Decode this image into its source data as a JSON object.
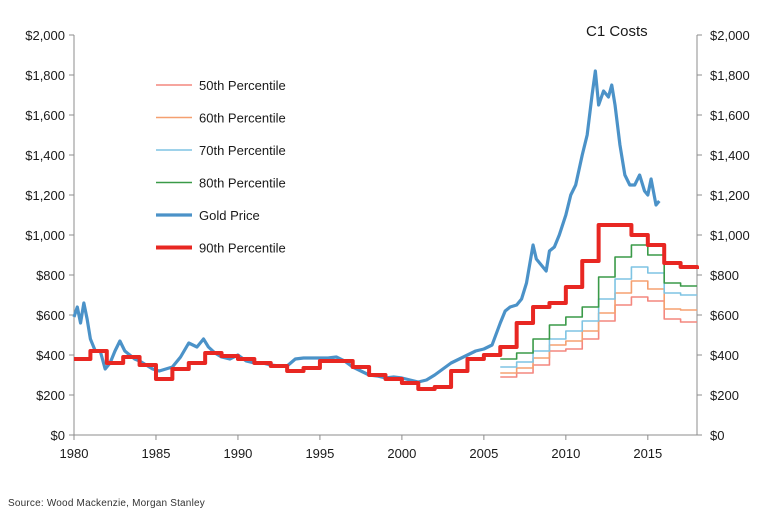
{
  "chart_data": {
    "type": "line",
    "title": "C1 Costs",
    "xlabel": "",
    "ylabel": "",
    "xlim": [
      1980,
      2018
    ],
    "ylim": [
      0,
      2000
    ],
    "x_ticks": [
      1980,
      1985,
      1990,
      1995,
      2000,
      2005,
      2010,
      2015
    ],
    "y_ticks": [
      0,
      200,
      400,
      600,
      800,
      1000,
      1200,
      1400,
      1600,
      1800,
      2000
    ],
    "y_tick_labels": [
      "$0",
      "$200",
      "$400",
      "$600",
      "$800",
      "$1,000",
      "$1,200",
      "$1,400",
      "$1,600",
      "$1,800",
      "$2,000"
    ],
    "x_tick_labels": [
      "1980",
      "1985",
      "1990",
      "1995",
      "2000",
      "2005",
      "2010",
      "2015"
    ],
    "grid": false,
    "legend_position": "top-left",
    "series": [
      {
        "name": "50th Percentile",
        "color": "#f4877f",
        "step": true,
        "x": [
          2006,
          2007,
          2008,
          2009,
          2010,
          2011,
          2012,
          2013,
          2014,
          2015,
          2016,
          2017,
          2018
        ],
        "values": [
          290,
          310,
          350,
          420,
          430,
          480,
          570,
          650,
          690,
          670,
          580,
          565,
          565
        ]
      },
      {
        "name": "60th Percentile",
        "color": "#f5a070",
        "step": true,
        "x": [
          2006,
          2007,
          2008,
          2009,
          2010,
          2011,
          2012,
          2013,
          2014,
          2015,
          2016,
          2017,
          2018
        ],
        "values": [
          310,
          335,
          385,
          450,
          470,
          520,
          610,
          710,
          770,
          730,
          630,
          625,
          625
        ]
      },
      {
        "name": "70th Percentile",
        "color": "#7ec4e3",
        "step": true,
        "x": [
          2006,
          2007,
          2008,
          2009,
          2010,
          2011,
          2012,
          2013,
          2014,
          2015,
          2016,
          2017,
          2018
        ],
        "values": [
          340,
          365,
          420,
          480,
          520,
          570,
          680,
          780,
          840,
          810,
          710,
          700,
          700
        ]
      },
      {
        "name": "80th Percentile",
        "color": "#3a9a48",
        "step": true,
        "x": [
          2006,
          2007,
          2008,
          2009,
          2010,
          2011,
          2012,
          2013,
          2014,
          2015,
          2016,
          2017,
          2018
        ],
        "values": [
          380,
          410,
          480,
          550,
          590,
          640,
          790,
          890,
          950,
          900,
          760,
          745,
          745
        ]
      },
      {
        "name": "Gold Price",
        "color": "#4b92c8",
        "step": false,
        "x": [
          1980.0,
          1980.2,
          1980.4,
          1980.6,
          1980.8,
          1981.0,
          1981.3,
          1981.6,
          1981.9,
          1982.2,
          1982.5,
          1982.8,
          1983.1,
          1983.4,
          1983.7,
          1984.0,
          1984.4,
          1984.8,
          1985.2,
          1985.6,
          1986.0,
          1986.5,
          1987.0,
          1987.5,
          1987.9,
          1988.2,
          1988.6,
          1989.0,
          1989.5,
          1990.0,
          1990.5,
          1991.0,
          1991.5,
          1992.0,
          1992.5,
          1993.0,
          1993.5,
          1994.0,
          1994.5,
          1995.0,
          1995.5,
          1996.0,
          1996.5,
          1997.0,
          1997.5,
          1998.0,
          1998.5,
          1999.0,
          1999.5,
          2000.0,
          2000.5,
          2001.0,
          2001.5,
          2002.0,
          2002.5,
          2003.0,
          2003.5,
          2004.0,
          2004.5,
          2005.0,
          2005.5,
          2006.0,
          2006.3,
          2006.6,
          2007.0,
          2007.3,
          2007.6,
          2008.0,
          2008.2,
          2008.5,
          2008.8,
          2009.0,
          2009.3,
          2009.6,
          2010.0,
          2010.3,
          2010.6,
          2011.0,
          2011.3,
          2011.6,
          2011.8,
          2012.0,
          2012.3,
          2012.6,
          2012.8,
          2013.0,
          2013.3,
          2013.6,
          2013.9,
          2014.2,
          2014.5,
          2014.8,
          2015.0,
          2015.2,
          2015.5,
          2015.7
        ],
        "values": [
          590,
          640,
          560,
          660,
          580,
          480,
          420,
          420,
          330,
          360,
          420,
          470,
          420,
          400,
          380,
          370,
          350,
          330,
          320,
          330,
          340,
          390,
          460,
          440,
          480,
          440,
          410,
          390,
          380,
          400,
          370,
          360,
          360,
          350,
          345,
          345,
          380,
          385,
          385,
          385,
          385,
          390,
          370,
          340,
          320,
          300,
          295,
          285,
          290,
          285,
          275,
          265,
          275,
          300,
          330,
          360,
          380,
          400,
          420,
          430,
          450,
          560,
          620,
          640,
          650,
          680,
          760,
          950,
          880,
          850,
          820,
          920,
          940,
          1000,
          1100,
          1200,
          1250,
          1400,
          1500,
          1700,
          1820,
          1650,
          1720,
          1690,
          1750,
          1650,
          1450,
          1300,
          1250,
          1250,
          1300,
          1220,
          1200,
          1280,
          1150,
          1170
        ]
      },
      {
        "name": "90th Percentile",
        "color": "#e82722",
        "step": true,
        "x": [
          1980,
          1981,
          1982,
          1983,
          1984,
          1985,
          1986,
          1987,
          1988,
          1989,
          1990,
          1991,
          1992,
          1993,
          1994,
          1995,
          1996,
          1997,
          1998,
          1999,
          2000,
          2001,
          2002,
          2003,
          2004,
          2005,
          2006,
          2007,
          2008,
          2009,
          2010,
          2011,
          2012,
          2013,
          2014,
          2015,
          2016,
          2017,
          2018
        ],
        "values": [
          380,
          420,
          360,
          390,
          350,
          280,
          330,
          360,
          410,
          395,
          380,
          360,
          345,
          320,
          335,
          370,
          370,
          340,
          300,
          280,
          260,
          230,
          240,
          320,
          380,
          400,
          440,
          560,
          640,
          660,
          740,
          870,
          1050,
          1050,
          1000,
          950,
          860,
          840,
          830
        ]
      }
    ]
  },
  "source_text": "Source: Wood Mackenzie, Morgan Stanley"
}
